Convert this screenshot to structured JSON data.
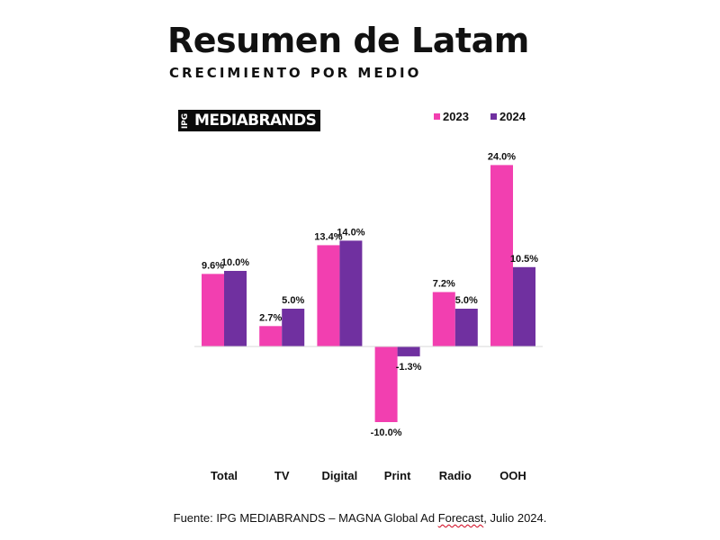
{
  "header": {
    "title": "Resumen de Latam",
    "subtitle": "CRECIMIENTO POR MEDIO"
  },
  "logo": {
    "prefix": "IPG",
    "name": "MEDIABRANDS"
  },
  "footer": {
    "before": "Fuente: IPG MEDIABRANDS – MAGNA Global Ad ",
    "underlined": "Forecast",
    "after": ", Julio 2024."
  },
  "chart_data": {
    "type": "bar",
    "title": "",
    "xlabel": "",
    "ylabel": "",
    "categories": [
      "Total",
      "TV",
      "Digital",
      "Print",
      "Radio",
      "OOH"
    ],
    "series": [
      {
        "name": "2023",
        "color": "#f23fb0",
        "values": [
          9.6,
          2.7,
          13.4,
          -10.0,
          7.2,
          24.0
        ],
        "labels": [
          "9.6%",
          "2.7%",
          "13.4%",
          "-10.0%",
          "7.2%",
          "24.0%"
        ]
      },
      {
        "name": "2024",
        "color": "#7030a0",
        "values": [
          10.0,
          5.0,
          14.0,
          -1.3,
          5.0,
          10.5
        ],
        "labels": [
          "10.0%",
          "5.0%",
          "14.0%",
          "-1.3%",
          "5.0%",
          "10.5%"
        ]
      }
    ],
    "legend": "top-right",
    "grid": false
  }
}
